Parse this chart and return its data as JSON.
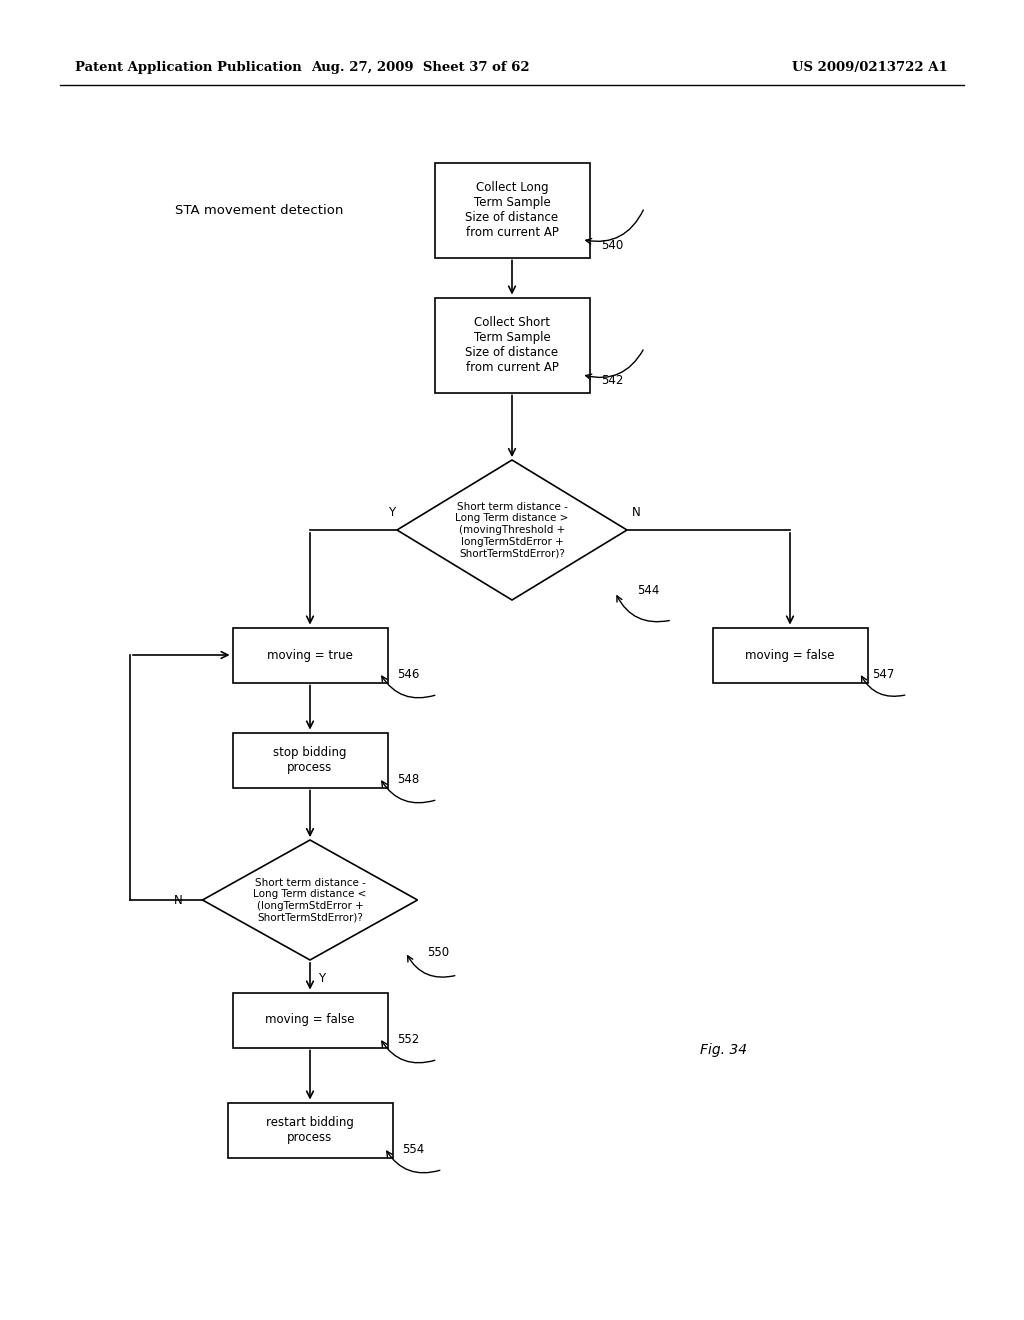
{
  "header_left": "Patent Application Publication",
  "header_mid": "Aug. 27, 2009  Sheet 37 of 62",
  "header_right": "US 2009/0213722 A1",
  "label_sta": "STA movement detection",
  "fig_label": "Fig. 34",
  "background": "#ffffff",
  "figw": 10.24,
  "figh": 13.2,
  "dpi": 100
}
